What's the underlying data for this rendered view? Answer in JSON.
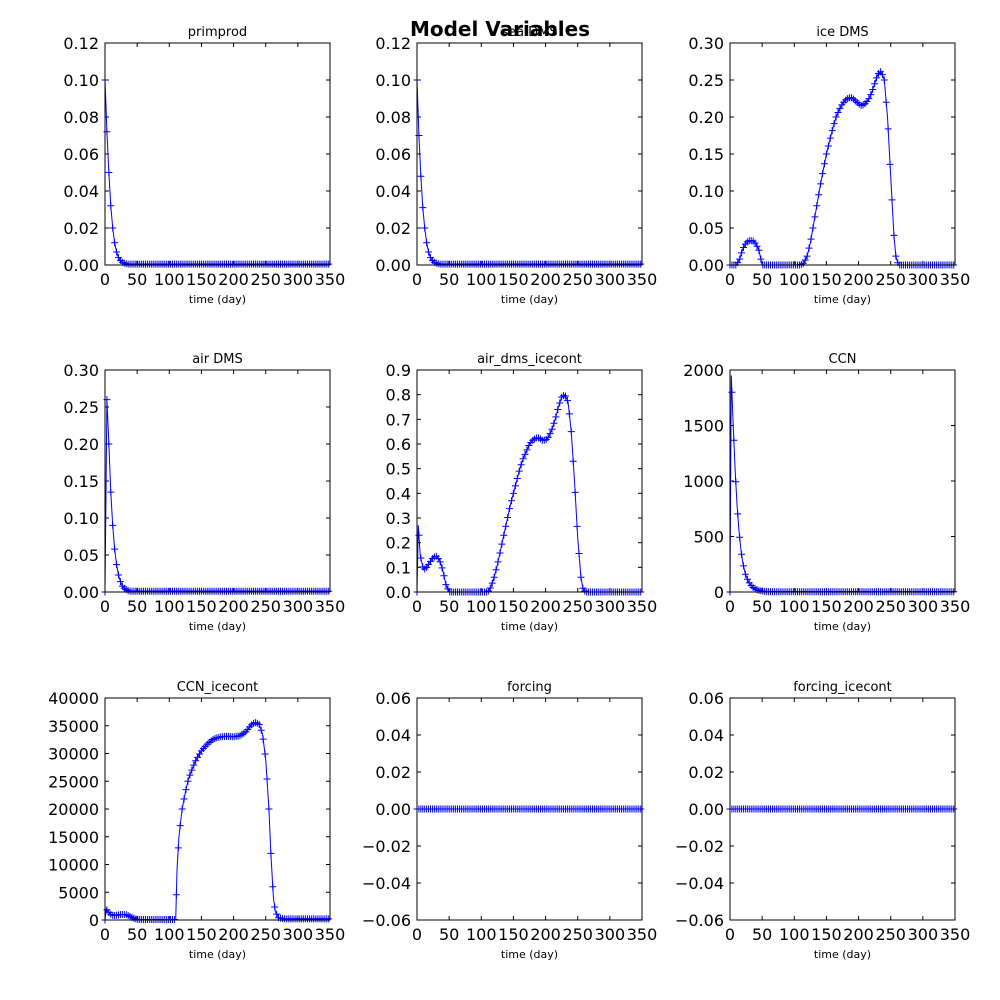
{
  "figure": {
    "title": "Model Variables"
  },
  "chart_data": [
    {
      "type": "line",
      "title": "primprod",
      "xlabel": "time (day)",
      "ylabel": "",
      "xlim": [
        0,
        350
      ],
      "ylim": [
        0,
        0.12
      ],
      "xticks": [
        0,
        50,
        100,
        150,
        200,
        250,
        300,
        350
      ],
      "yticks": [
        0.0,
        0.02,
        0.04,
        0.06,
        0.08,
        0.1,
        0.12
      ],
      "ytick_labels": [
        "0.00",
        "0.02",
        "0.04",
        "0.06",
        "0.08",
        "0.10",
        "0.12"
      ],
      "series": [
        {
          "x": [
            0,
            3,
            6,
            9,
            12,
            15,
            18,
            21,
            24,
            27,
            30,
            35,
            40,
            45,
            50,
            60,
            80,
            100,
            150,
            200,
            250,
            300,
            350
          ],
          "y": [
            0.1,
            0.072,
            0.05,
            0.032,
            0.02,
            0.012,
            0.007,
            0.004,
            0.0025,
            0.0015,
            0.001,
            0.0005,
            0.0005,
            0.0005,
            0.0005,
            0.0005,
            0.0005,
            0.0005,
            0.0005,
            0.0005,
            0.0005,
            0.0005,
            0.0005
          ]
        }
      ]
    },
    {
      "type": "line",
      "title": "sea DMS",
      "xlabel": "time (day)",
      "ylabel": "",
      "xlim": [
        0,
        350
      ],
      "ylim": [
        0,
        0.12
      ],
      "xticks": [
        0,
        50,
        100,
        150,
        200,
        250,
        300,
        350
      ],
      "yticks": [
        0.0,
        0.02,
        0.04,
        0.06,
        0.08,
        0.1,
        0.12
      ],
      "ytick_labels": [
        "0.00",
        "0.02",
        "0.04",
        "0.06",
        "0.08",
        "0.10",
        "0.12"
      ],
      "series": [
        {
          "x": [
            0,
            3,
            6,
            9,
            12,
            15,
            18,
            21,
            24,
            27,
            30,
            35,
            40,
            45,
            50,
            60,
            80,
            100,
            150,
            200,
            250,
            300,
            350
          ],
          "y": [
            0.1,
            0.07,
            0.048,
            0.031,
            0.02,
            0.012,
            0.007,
            0.004,
            0.0025,
            0.0015,
            0.001,
            0.0005,
            0.0005,
            0.0005,
            0.0005,
            0.0005,
            0.0005,
            0.0005,
            0.0005,
            0.0005,
            0.0005,
            0.0005,
            0.0005
          ]
        }
      ]
    },
    {
      "type": "line",
      "title": "ice DMS",
      "xlabel": "time (day)",
      "ylabel": "",
      "xlim": [
        0,
        350
      ],
      "ylim": [
        0,
        0.3
      ],
      "xticks": [
        0,
        50,
        100,
        150,
        200,
        250,
        300,
        350
      ],
      "yticks": [
        0.0,
        0.05,
        0.1,
        0.15,
        0.2,
        0.25,
        0.3
      ],
      "ytick_labels": [
        "0.00",
        "0.05",
        "0.10",
        "0.15",
        "0.20",
        "0.25",
        "0.30"
      ],
      "series": [
        {
          "x": [
            0,
            10,
            15,
            20,
            25,
            30,
            35,
            40,
            45,
            50,
            60,
            80,
            100,
            110,
            115,
            120,
            125,
            130,
            135,
            140,
            145,
            150,
            155,
            160,
            165,
            170,
            175,
            180,
            185,
            190,
            195,
            200,
            205,
            210,
            215,
            220,
            225,
            230,
            235,
            240,
            245,
            250,
            255,
            258,
            262,
            270,
            300,
            350
          ],
          "y": [
            0.0,
            0.0,
            0.008,
            0.022,
            0.03,
            0.033,
            0.033,
            0.029,
            0.02,
            0.0,
            0.0,
            0.0,
            0.0,
            0.0,
            0.003,
            0.012,
            0.03,
            0.055,
            0.08,
            0.105,
            0.128,
            0.15,
            0.168,
            0.185,
            0.2,
            0.21,
            0.218,
            0.223,
            0.226,
            0.226,
            0.222,
            0.218,
            0.215,
            0.218,
            0.223,
            0.232,
            0.245,
            0.258,
            0.262,
            0.25,
            0.2,
            0.12,
            0.04,
            0.012,
            0.0,
            0.0,
            0.0,
            0.0
          ]
        }
      ]
    },
    {
      "type": "line",
      "title": "air DMS",
      "xlabel": "time (day)",
      "ylabel": "",
      "xlim": [
        0,
        350
      ],
      "ylim": [
        0,
        0.3
      ],
      "xticks": [
        0,
        50,
        100,
        150,
        200,
        250,
        300,
        350
      ],
      "yticks": [
        0.0,
        0.05,
        0.1,
        0.15,
        0.2,
        0.25,
        0.3
      ],
      "ytick_labels": [
        "0.00",
        "0.05",
        "0.10",
        "0.15",
        "0.20",
        "0.25",
        "0.30"
      ],
      "series": [
        {
          "x": [
            0,
            3,
            6,
            9,
            12,
            15,
            18,
            21,
            24,
            27,
            30,
            35,
            40,
            45,
            50,
            60,
            80,
            100,
            150,
            200,
            250,
            300,
            350
          ],
          "y": [
            0.0,
            0.26,
            0.2,
            0.135,
            0.09,
            0.058,
            0.037,
            0.023,
            0.014,
            0.008,
            0.005,
            0.002,
            0.001,
            0.001,
            0.001,
            0.001,
            0.001,
            0.001,
            0.001,
            0.001,
            0.001,
            0.001,
            0.001
          ]
        }
      ]
    },
    {
      "type": "line",
      "title": "air_dms_icecont",
      "xlabel": "time (day)",
      "ylabel": "",
      "xlim": [
        0,
        350
      ],
      "ylim": [
        0,
        0.9
      ],
      "xticks": [
        0,
        50,
        100,
        150,
        200,
        250,
        300,
        350
      ],
      "yticks": [
        0.0,
        0.1,
        0.2,
        0.3,
        0.4,
        0.5,
        0.6,
        0.7,
        0.8,
        0.9
      ],
      "ytick_labels": [
        "0.0",
        "0.1",
        "0.2",
        "0.3",
        "0.4",
        "0.5",
        "0.6",
        "0.7",
        "0.8",
        "0.9"
      ],
      "series": [
        {
          "x": [
            0,
            2,
            5,
            10,
            15,
            20,
            25,
            30,
            35,
            40,
            45,
            50,
            60,
            80,
            100,
            110,
            115,
            120,
            125,
            130,
            135,
            140,
            145,
            150,
            155,
            160,
            165,
            170,
            175,
            180,
            185,
            190,
            195,
            200,
            205,
            210,
            215,
            220,
            225,
            230,
            235,
            240,
            245,
            250,
            255,
            258,
            262,
            270,
            300,
            350
          ],
          "y": [
            0.0,
            0.27,
            0.15,
            0.09,
            0.1,
            0.12,
            0.14,
            0.145,
            0.13,
            0.09,
            0.03,
            0.0,
            0.0,
            0.0,
            0.0,
            0.0,
            0.02,
            0.06,
            0.11,
            0.17,
            0.23,
            0.29,
            0.35,
            0.4,
            0.45,
            0.5,
            0.54,
            0.57,
            0.6,
            0.615,
            0.625,
            0.625,
            0.615,
            0.615,
            0.63,
            0.66,
            0.7,
            0.75,
            0.79,
            0.8,
            0.77,
            0.65,
            0.45,
            0.22,
            0.06,
            0.015,
            0.0,
            0.0,
            0.0,
            0.0
          ]
        }
      ]
    },
    {
      "type": "line",
      "title": "CCN",
      "xlabel": "time (day)",
      "ylabel": "",
      "xlim": [
        0,
        350
      ],
      "ylim": [
        0,
        2000
      ],
      "xticks": [
        0,
        50,
        100,
        150,
        200,
        250,
        300,
        350
      ],
      "yticks": [
        0,
        500,
        1000,
        1500,
        2000
      ],
      "ytick_labels": [
        "0",
        "500",
        "1000",
        "1500",
        "2000"
      ],
      "series": [
        {
          "x": [
            0,
            2,
            5,
            8,
            11,
            14,
            17,
            20,
            24,
            28,
            32,
            36,
            40,
            45,
            50,
            55,
            60,
            80,
            100,
            150,
            200,
            250,
            300,
            350
          ],
          "y": [
            0,
            1950,
            1500,
            1100,
            780,
            550,
            380,
            260,
            160,
            100,
            65,
            40,
            25,
            15,
            8,
            5,
            3,
            2,
            2,
            2,
            2,
            2,
            2,
            2
          ]
        }
      ]
    },
    {
      "type": "line",
      "title": "CCN_icecont",
      "xlabel": "time (day)",
      "ylabel": "",
      "xlim": [
        0,
        350
      ],
      "ylim": [
        0,
        40000
      ],
      "xticks": [
        0,
        50,
        100,
        150,
        200,
        250,
        300,
        350
      ],
      "yticks": [
        0,
        5000,
        10000,
        15000,
        20000,
        25000,
        30000,
        35000,
        40000
      ],
      "ytick_labels": [
        "0",
        "5000",
        "10000",
        "15000",
        "20000",
        "25000",
        "30000",
        "35000",
        "40000"
      ],
      "series": [
        {
          "x": [
            0,
            2,
            5,
            10,
            15,
            20,
            25,
            30,
            35,
            40,
            45,
            50,
            60,
            80,
            100,
            110,
            112,
            115,
            120,
            125,
            130,
            140,
            150,
            160,
            170,
            180,
            190,
            200,
            210,
            220,
            225,
            230,
            235,
            240,
            245,
            250,
            255,
            258,
            262,
            265,
            270,
            280,
            300,
            350
          ],
          "y": [
            0,
            2000,
            1500,
            900,
            800,
            900,
            1000,
            1000,
            900,
            600,
            300,
            100,
            100,
            100,
            100,
            100,
            9000,
            15000,
            20000,
            23000,
            25500,
            28500,
            30500,
            31800,
            32700,
            33000,
            33100,
            33000,
            33200,
            34000,
            34800,
            35400,
            35600,
            35200,
            33500,
            29000,
            20000,
            12000,
            4000,
            1500,
            400,
            200,
            200,
            200
          ]
        }
      ]
    },
    {
      "type": "line",
      "title": "forcing",
      "xlabel": "time (day)",
      "ylabel": "",
      "xlim": [
        0,
        350
      ],
      "ylim": [
        -0.06,
        0.06
      ],
      "xticks": [
        0,
        50,
        100,
        150,
        200,
        250,
        300,
        350
      ],
      "yticks": [
        -0.06,
        -0.04,
        -0.02,
        0.0,
        0.02,
        0.04,
        0.06
      ],
      "ytick_labels": [
        "−0.06",
        "−0.04",
        "−0.02",
        "0.00",
        "0.02",
        "0.04",
        "0.06"
      ],
      "series": [
        {
          "x": [
            0,
            350
          ],
          "y": [
            0,
            0
          ]
        }
      ]
    },
    {
      "type": "line",
      "title": "forcing_icecont",
      "xlabel": "time (day)",
      "ylabel": "",
      "xlim": [
        0,
        350
      ],
      "ylim": [
        -0.06,
        0.06
      ],
      "xticks": [
        0,
        50,
        100,
        150,
        200,
        250,
        300,
        350
      ],
      "yticks": [
        -0.06,
        -0.04,
        -0.02,
        0.0,
        0.02,
        0.04,
        0.06
      ],
      "ytick_labels": [
        "−0.06",
        "−0.04",
        "−0.02",
        "0.00",
        "0.02",
        "0.04",
        "0.06"
      ],
      "series": [
        {
          "x": [
            0,
            350
          ],
          "y": [
            0,
            0
          ]
        }
      ]
    }
  ],
  "colors": {
    "series": "#0000ff",
    "axes": "#000000",
    "background": "#ffffff"
  }
}
